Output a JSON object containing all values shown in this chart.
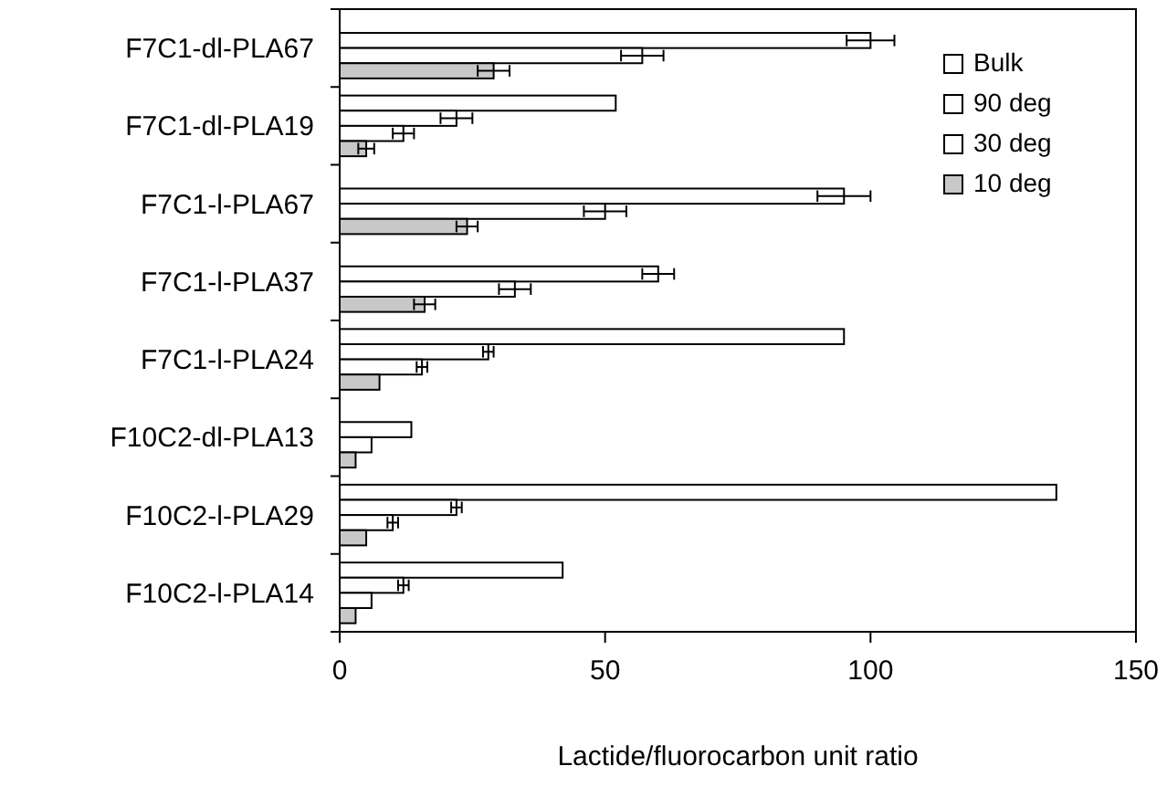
{
  "chart_data": {
    "type": "bar",
    "orientation": "horizontal",
    "xlabel": "Lactide/fluorocarbon unit ratio",
    "categories": [
      "F7C1-dl-PLA67",
      "F7C1-dl-PLA19",
      "F7C1-l-PLA67",
      "F7C1-l-PLA37",
      "F7C1-l-PLA24",
      "F10C2-dl-PLA13",
      "F10C2-l-PLA29",
      "F10C2-l-PLA14"
    ],
    "series": [
      {
        "name": "Bulk",
        "color": "#ffffff",
        "values": [
          null,
          52,
          null,
          null,
          95,
          null,
          135,
          42
        ]
      },
      {
        "name": "90 deg",
        "color": "#ffffff",
        "values": [
          100,
          22,
          95,
          60,
          28,
          13.5,
          22,
          12
        ],
        "errors": [
          4.5,
          3,
          5,
          3,
          1,
          null,
          1,
          1
        ]
      },
      {
        "name": "30 deg",
        "color": "#ffffff",
        "values": [
          57,
          12,
          50,
          33,
          15.5,
          6,
          10,
          6
        ],
        "errors": [
          4,
          2,
          4,
          3,
          1,
          null,
          1,
          null
        ]
      },
      {
        "name": "10 deg",
        "color": "#c8c8c8",
        "values": [
          29,
          5,
          24,
          16,
          7.5,
          3,
          5,
          3
        ],
        "errors": [
          3,
          1.5,
          2,
          2,
          null,
          null,
          null,
          null
        ]
      }
    ],
    "xlim": [
      0,
      150
    ],
    "xticks": [
      0,
      50,
      100,
      150
    ],
    "grid": false,
    "legend": "top right"
  }
}
